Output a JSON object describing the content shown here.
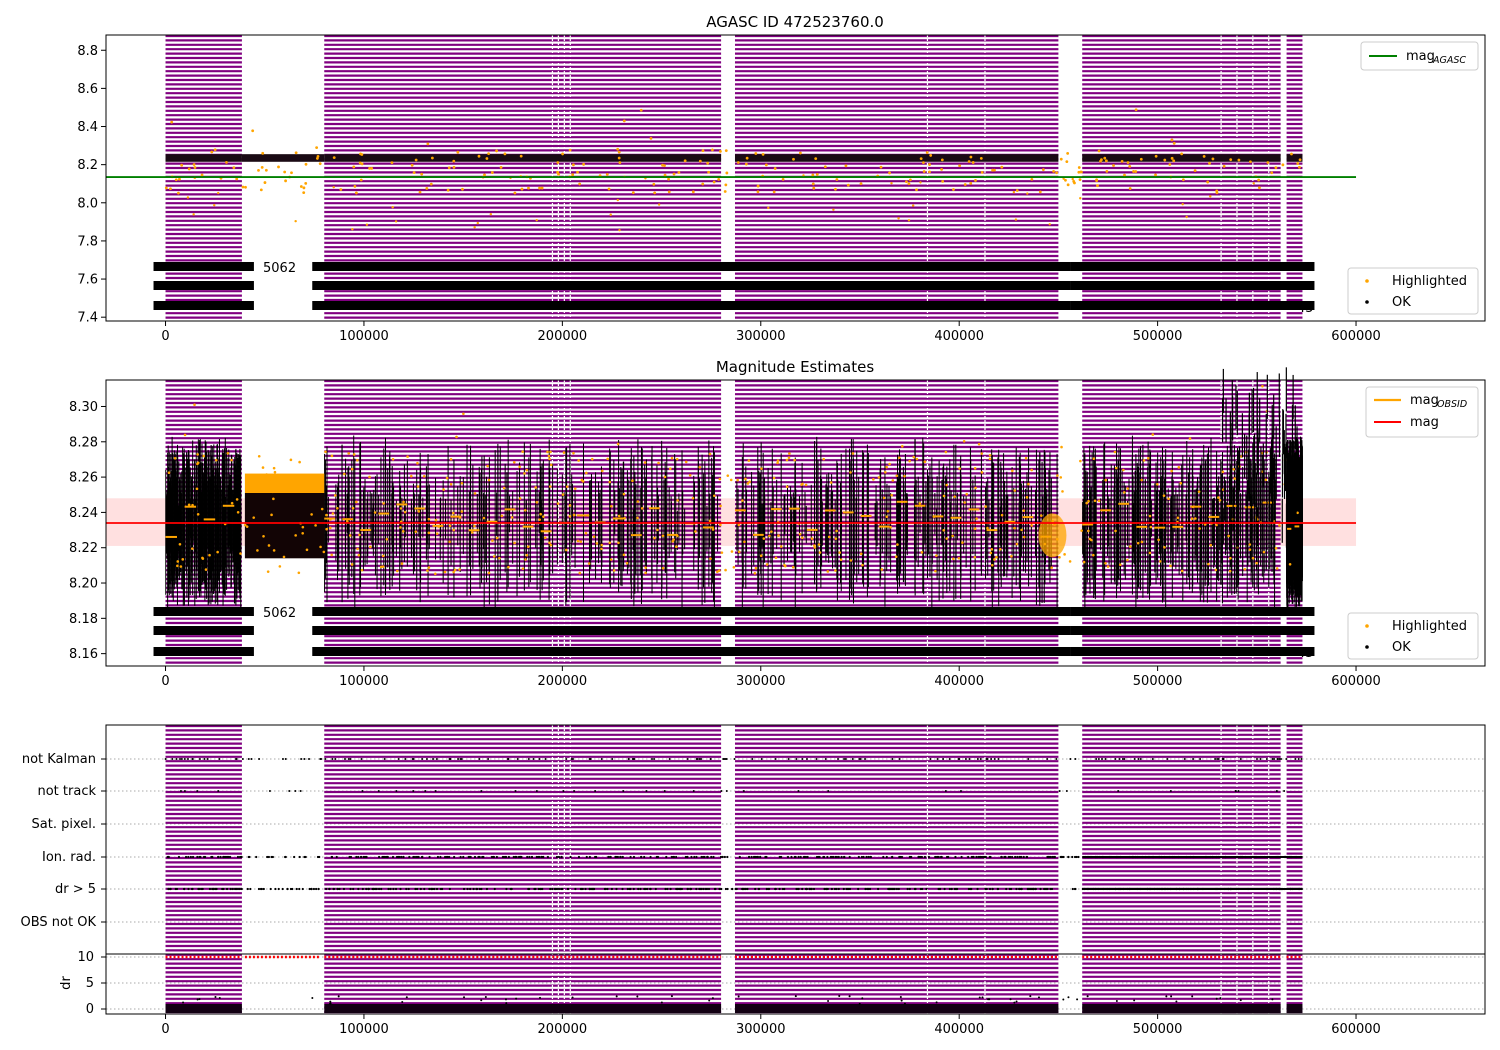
{
  "chart_data": [
    {
      "type": "scatter",
      "title": "AGASC ID 472523760.0",
      "xlim": [
        -30000,
        665000
      ],
      "ylim": [
        7.38,
        8.88
      ],
      "x_ticks": [
        0,
        100000,
        200000,
        300000,
        400000,
        500000,
        600000
      ],
      "y_ticks": [
        7.4,
        7.6,
        7.8,
        8.0,
        8.2,
        8.4,
        8.6,
        8.8
      ],
      "reference_line": {
        "name": "mag_AGASC",
        "value": 8.135,
        "color": "#008000"
      },
      "series": [
        {
          "name": "Highlighted",
          "color": "#ffa500"
        },
        {
          "name": "OK",
          "color": "#000000"
        }
      ],
      "legend_top": {
        "position": "top-right",
        "entries": [
          "mag",
          "AGASC"
        ]
      },
      "legend_bottom": {
        "position": "bottom-right",
        "entries": [
          "Highlighted",
          "OK"
        ]
      },
      "annotation_labels": [
        "5062",
        "45"
      ]
    },
    {
      "type": "scatter",
      "title": "Magnitude Estimates",
      "xlim": [
        -30000,
        665000
      ],
      "ylim": [
        8.153,
        8.315
      ],
      "x_ticks": [
        0,
        100000,
        200000,
        300000,
        400000,
        500000,
        600000
      ],
      "y_ticks": [
        8.16,
        8.18,
        8.2,
        8.22,
        8.24,
        8.26,
        8.28,
        8.3
      ],
      "mag_line": {
        "name": "mag",
        "value": 8.234,
        "band": [
          8.221,
          8.248
        ],
        "color": "#ff0000"
      },
      "mag_obsid_color": "#ffa500",
      "series": [
        {
          "name": "Highlighted",
          "color": "#ffa500"
        },
        {
          "name": "OK",
          "color": "#000000"
        }
      ],
      "legend_top": {
        "position": "top-right",
        "entries": [
          "mag",
          "OBSID",
          "mag"
        ]
      },
      "legend_bottom": {
        "position": "bottom-right",
        "entries": [
          "Highlighted",
          "OK"
        ]
      },
      "annotation_labels": [
        "5062",
        "45"
      ]
    },
    {
      "type": "scatter",
      "xlim": [
        -30000,
        665000
      ],
      "x_ticks": [
        0,
        100000,
        200000,
        300000,
        400000,
        500000,
        600000
      ],
      "flag_rows": [
        "not Kalman",
        "not track",
        "Sat. pixel.",
        "Ion. rad.",
        "dr > 5",
        "OBS not OK"
      ],
      "dr_axis": {
        "label": "dr",
        "ticks": [
          0,
          5,
          10
        ],
        "ylim": [
          -0.5,
          10.5
        ]
      }
    }
  ],
  "x_tick_labels": [
    "0",
    "100000",
    "200000",
    "300000",
    "400000",
    "500000",
    "600000"
  ],
  "colors": {
    "obs_band": "#800080",
    "highlighted": "#ffa500",
    "ok": "#000000",
    "agasc": "#008000",
    "mag": "#ff0000",
    "dr_high": "#ff0000"
  },
  "panel1": {
    "title": "AGASC ID 472523760.0",
    "y_tick_labels": [
      "7.4",
      "7.6",
      "7.8",
      "8.0",
      "8.2",
      "8.4",
      "8.6",
      "8.8"
    ],
    "legend_mag": "mag",
    "legend_mag_sub": "AGASC",
    "legend_highlighted": "Highlighted",
    "legend_ok": "OK",
    "label_gap": "5062",
    "label_end": "45"
  },
  "panel2": {
    "title": "Magnitude Estimates",
    "y_tick_labels": [
      "8.16",
      "8.18",
      "8.20",
      "8.22",
      "8.24",
      "8.26",
      "8.28",
      "8.30"
    ],
    "legend_mag_obsid": "mag",
    "legend_mag_obsid_sub": "OBSID",
    "legend_mag": "mag",
    "legend_highlighted": "Highlighted",
    "legend_ok": "OK",
    "label_gap": "5062",
    "label_end": "45"
  },
  "panel3": {
    "flag_labels": [
      "not Kalman",
      "not track",
      "Sat. pixel.",
      "Ion. rad.",
      "dr > 5",
      "OBS not OK"
    ],
    "dr_label": "dr",
    "dr_tick_labels": [
      "10",
      "5",
      "0"
    ]
  }
}
